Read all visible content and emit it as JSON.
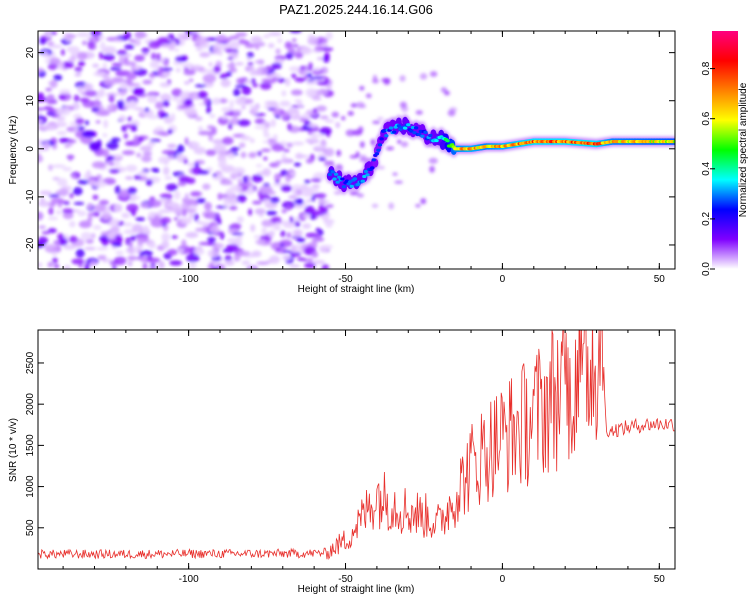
{
  "chart_data": [
    {
      "type": "heatmap",
      "title": "PAZ1.2025.244.16.14.G06",
      "xlabel": "Height of straight line (km)",
      "ylabel": "Frequency (Hz)",
      "xlim": [
        -148,
        55
      ],
      "ylim": [
        -25,
        24.5
      ],
      "xticks": [
        -100,
        -50,
        0,
        50
      ],
      "yticks": [
        -20,
        -10,
        0,
        10,
        20
      ],
      "colorbar": {
        "label": "Normalized spectral amplitude",
        "range": [
          0.0,
          0.95
        ],
        "ticks": [
          0.0,
          0.2,
          0.4,
          0.6,
          0.8
        ],
        "tick_labels": [
          "0.0",
          "0.2",
          "0.4",
          "0.6",
          "0.8"
        ],
        "colormap": [
          "#ffffff",
          "#7f00ff",
          "#0000ff",
          "#00ffff",
          "#00ff00",
          "#ffff00",
          "#ff8000",
          "#ff0000",
          "#ff0080"
        ]
      },
      "signal_track": {
        "x": [
          -55,
          -50,
          -45,
          -42,
          -40,
          -38,
          -35,
          -32,
          -28,
          -25,
          -20,
          -15,
          -10,
          -5,
          0,
          10,
          20,
          30,
          35,
          55
        ],
        "freq": [
          -5,
          -7.5,
          -6.5,
          -4,
          -1,
          3,
          4,
          5,
          4,
          3,
          2,
          0,
          0,
          0.5,
          0.5,
          1.5,
          1.5,
          1,
          1.5,
          1.5
        ],
        "amplitude": [
          0.35,
          0.3,
          0.35,
          0.3,
          0.25,
          0.3,
          0.3,
          0.35,
          0.3,
          0.3,
          0.35,
          0.7,
          0.75,
          0.7,
          0.75,
          0.8,
          0.8,
          0.8,
          0.7,
          0.65
        ]
      }
    },
    {
      "type": "line",
      "xlabel": "Height of straight line (km)",
      "ylabel": "SNR (10 * v/v)",
      "xlim": [
        -148,
        55
      ],
      "ylim": [
        0,
        2900
      ],
      "xticks": [
        -100,
        -50,
        0,
        50
      ],
      "yticks": [
        500,
        1000,
        1500,
        2000,
        2500
      ],
      "series": [
        {
          "name": "SNR",
          "color": "#e8302c",
          "x": [
            -148,
            -120,
            -100,
            -80,
            -60,
            -56,
            -50,
            -45,
            -40,
            -38,
            -35,
            -30,
            -25,
            -20,
            -15,
            -10,
            -5,
            0,
            5,
            10,
            15,
            20,
            25,
            30,
            32,
            33,
            35,
            40,
            45,
            50,
            55
          ],
          "y": [
            180,
            180,
            185,
            185,
            190,
            200,
            350,
            600,
            900,
            850,
            800,
            700,
            650,
            550,
            900,
            1250,
            1450,
            1600,
            1700,
            1850,
            2050,
            2250,
            2450,
            2650,
            2750,
            1700,
            1680,
            1720,
            1750,
            1760,
            1760
          ]
        }
      ]
    }
  ]
}
